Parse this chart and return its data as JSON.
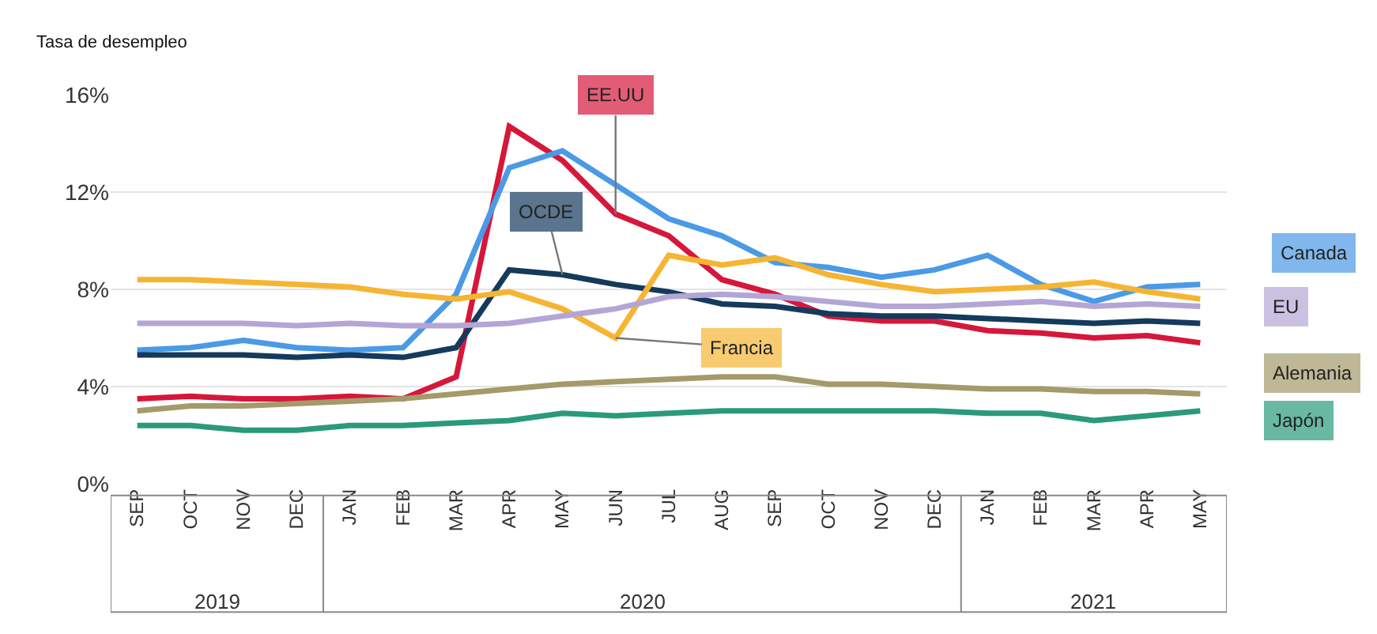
{
  "chart_data": {
    "type": "line",
    "ylabel": "Tasa de desempleo",
    "categories": [
      "SEP",
      "OCT",
      "NOV",
      "DEC",
      "JAN",
      "FEB",
      "MAR",
      "APR",
      "MAY",
      "JUN",
      "JUL",
      "AUG",
      "SEP",
      "OCT",
      "NOV",
      "DEC",
      "JAN",
      "FEB",
      "MAR",
      "APR",
      "MAY"
    ],
    "series": [
      {
        "name": "EE.UU",
        "color": "#d6173a",
        "values": [
          3.5,
          3.6,
          3.5,
          3.5,
          3.6,
          3.5,
          4.4,
          14.7,
          13.3,
          11.1,
          10.2,
          8.4,
          7.8,
          6.9,
          6.7,
          6.7,
          6.3,
          6.2,
          6.0,
          6.1,
          5.8
        ]
      },
      {
        "name": "Canada",
        "color": "#4a9ae6",
        "values": [
          5.5,
          5.6,
          5.9,
          5.6,
          5.5,
          5.6,
          7.8,
          13.0,
          13.7,
          12.3,
          10.9,
          10.2,
          9.1,
          8.9,
          8.5,
          8.8,
          9.4,
          8.2,
          7.5,
          8.1,
          8.2
        ]
      },
      {
        "name": "OCDE",
        "color": "#143a5c",
        "values": [
          5.3,
          5.3,
          5.3,
          5.2,
          5.3,
          5.2,
          5.6,
          8.8,
          8.6,
          8.2,
          7.9,
          7.4,
          7.3,
          7.0,
          6.9,
          6.9,
          6.8,
          6.7,
          6.6,
          6.7,
          6.6
        ]
      },
      {
        "name": "Francia",
        "color": "#f5b533",
        "values": [
          8.4,
          8.4,
          8.3,
          8.2,
          8.1,
          7.8,
          7.6,
          7.9,
          7.2,
          6.0,
          9.4,
          9.0,
          9.3,
          8.6,
          8.2,
          7.9,
          8.0,
          8.1,
          8.3,
          7.9,
          7.6
        ]
      },
      {
        "name": "EU",
        "color": "#b3a6d6",
        "values": [
          6.6,
          6.6,
          6.6,
          6.5,
          6.6,
          6.5,
          6.5,
          6.6,
          6.9,
          7.2,
          7.7,
          7.8,
          7.7,
          7.5,
          7.3,
          7.3,
          7.4,
          7.5,
          7.3,
          7.4,
          7.3
        ]
      },
      {
        "name": "Alemania",
        "color": "#a49a6a",
        "values": [
          3.0,
          3.2,
          3.2,
          3.3,
          3.4,
          3.5,
          3.7,
          3.9,
          4.1,
          4.2,
          4.3,
          4.4,
          4.4,
          4.1,
          4.1,
          4.0,
          3.9,
          3.9,
          3.8,
          3.8,
          3.7
        ]
      },
      {
        "name": "Japón",
        "color": "#2a9a7a",
        "values": [
          2.4,
          2.4,
          2.2,
          2.2,
          2.4,
          2.4,
          2.5,
          2.6,
          2.9,
          2.8,
          2.9,
          3.0,
          3.0,
          3.0,
          3.0,
          3.0,
          2.9,
          2.9,
          2.6,
          2.8,
          3.0
        ]
      }
    ],
    "ylim": [
      0,
      16
    ],
    "yticks": [
      {
        "value": 0,
        "label": "0%"
      },
      {
        "value": 4,
        "label": "4%"
      },
      {
        "value": 8,
        "label": "8%"
      },
      {
        "value": 12,
        "label": "12%"
      },
      {
        "value": 16,
        "label": "16%"
      }
    ],
    "grid": "y",
    "legend": false,
    "line_style": "solid",
    "annotations": [
      "2019",
      "2020",
      "2021"
    ]
  }
}
